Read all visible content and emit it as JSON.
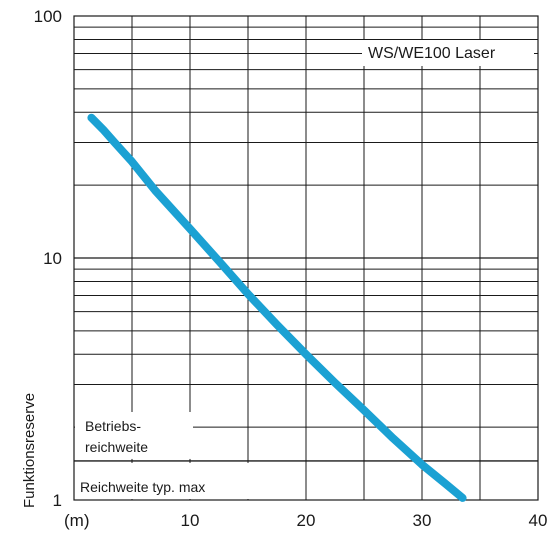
{
  "chart_data": {
    "type": "line",
    "title": "WS/WE100 Laser",
    "ylabel": "Funktionsreserve",
    "xlabel": "",
    "x_unit_label": "(m)",
    "x_scale": "linear",
    "y_scale": "log",
    "xlim": [
      0,
      40
    ],
    "ylim": [
      1,
      100
    ],
    "x_ticks": [
      10,
      20,
      30,
      40
    ],
    "x_tick_labels": [
      "10",
      "20",
      "30",
      "40"
    ],
    "y_ticks": [
      1,
      10,
      100
    ],
    "y_tick_labels": [
      "1",
      "10",
      "100"
    ],
    "grid": true,
    "series": [
      {
        "color": "#1ba1d3",
        "x": [
          1.5,
          2.5,
          3.5,
          5,
          7,
          10,
          12.5,
          15,
          17.5,
          20,
          22.5,
          25,
          27.5,
          30,
          32,
          33.5
        ],
        "y": [
          38,
          34,
          30,
          25,
          19,
          13.2,
          9.7,
          7.1,
          5.3,
          4.0,
          3.05,
          2.35,
          1.8,
          1.4,
          1.17,
          1.02
        ]
      }
    ],
    "annotations": {
      "operating_range_label": [
        "Betriebs-",
        "reichweite"
      ],
      "max_range_label": "Reichweite typ. max",
      "max_range_level": 1.45
    }
  }
}
